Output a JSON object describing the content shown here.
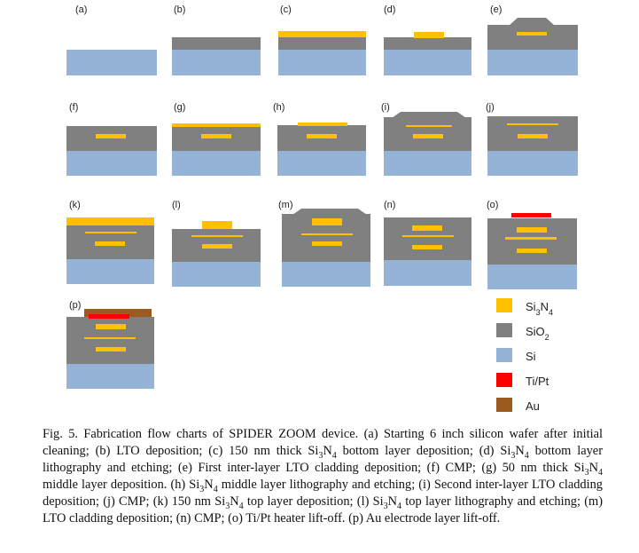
{
  "panels": [
    {
      "label": "(a)"
    },
    {
      "label": "(b)"
    },
    {
      "label": "(c)"
    },
    {
      "label": "(d)"
    },
    {
      "label": "(e)"
    },
    {
      "label": "(f)"
    },
    {
      "label": "(g)"
    },
    {
      "label": "(h)"
    },
    {
      "label": "(i)"
    },
    {
      "label": "(j)"
    },
    {
      "label": "(k)"
    },
    {
      "label": "(l)"
    },
    {
      "label": "(m)"
    },
    {
      "label": "(n)"
    },
    {
      "label": "(o)"
    },
    {
      "label": "(p)"
    }
  ],
  "legend": [
    {
      "name": "Si₃N₄",
      "base": "Si",
      "sub1": "3",
      "mid": "N",
      "sub2": "4",
      "color": "#FFC000"
    },
    {
      "name": "SiO₂",
      "base": "SiO",
      "sub1": "2",
      "color": "#808080"
    },
    {
      "name": "Si",
      "base": "Si",
      "color": "#95B3D7"
    },
    {
      "name": "Ti/Pt",
      "base": "Ti/Pt",
      "color": "#FF0000"
    },
    {
      "name": "Au",
      "base": "Au",
      "color": "#9C5B1E"
    }
  ],
  "caption": {
    "line1": "Fig. 5. Fabrication flow charts of SPIDER ZOOM device. (a) Starting 6 inch silicon wafer",
    "line2": "after initial cleaning; (b) LTO deposition; (c) 150 nm thick Si",
    "line2_s1": "3",
    "line2_b": "N",
    "line2_s2": "4",
    "line2_c": " bottom layer deposition; (d)",
    "line3_a": "Si",
    "line3_s1": "3",
    "line3_b": "N",
    "line3_s2": "4",
    "line3_c": " bottom layer lithography and etching; (e) First inter-layer LTO cladding deposition; (f)",
    "line4_a": "CMP; (g) 50 nm thick Si",
    "line4_s1": "3",
    "line4_b": "N",
    "line4_s2": "4",
    "line4_c": " middle layer deposition. (h) Si",
    "line4_s3": "3",
    "line4_d": "N",
    "line4_s4": "4",
    "line4_e": " middle layer lithography and",
    "line5_a": "etching; (i) Second inter-layer LTO cladding deposition; (j) CMP; (k) 150 nm Si",
    "line5_s1": "3",
    "line5_b": "N",
    "line5_s2": "4",
    "line5_c": " top layer",
    "line6_a": "deposition; (l) Si",
    "line6_s1": "3",
    "line6_b": "N",
    "line6_s2": "4",
    "line6_c": " top layer lithography and etching; (m) LTO cladding deposition; (n)",
    "line7": "CMP; (o) Ti/Pt heater lift-off. (p) Au electrode layer lift-off."
  }
}
